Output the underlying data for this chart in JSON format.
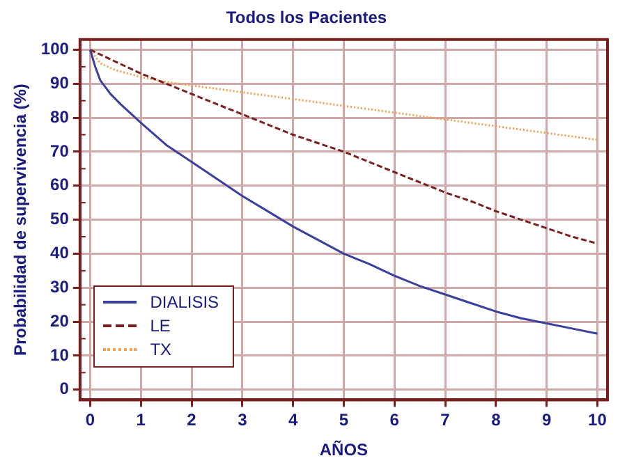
{
  "chart_data": {
    "type": "line",
    "title": "Todos los Pacientes",
    "xlabel": "AÑOS",
    "ylabel": "Probabilidad de supervivencia (%)",
    "xlim": [
      -0.2,
      10.2
    ],
    "xticks": [
      0,
      1,
      2,
      3,
      4,
      5,
      6,
      7,
      8,
      9,
      10
    ],
    "ylim": [
      -3,
      103
    ],
    "yticks": [
      0,
      10,
      20,
      30,
      40,
      50,
      60,
      70,
      80,
      90,
      100
    ],
    "grid": true,
    "legend": "bottom left",
    "marker": "none",
    "series": [
      {
        "name": "DIALISIS",
        "color": "#3b3fa0",
        "line_style": "solid",
        "x": [
          0,
          0.1,
          0.2,
          0.4,
          0.6,
          1,
          1.5,
          2,
          2.5,
          3,
          3.5,
          4,
          4.5,
          5,
          5.5,
          6,
          6.5,
          7,
          7.5,
          8,
          8.5,
          9,
          9.5,
          10
        ],
        "values": [
          100,
          95,
          91,
          87,
          84,
          78.5,
          72,
          67,
          62,
          57,
          52.5,
          48,
          44,
          40,
          37,
          33.5,
          30.5,
          28,
          25.5,
          23,
          21,
          19.5,
          18,
          16.5
        ]
      },
      {
        "name": "LE",
        "color": "#7a1f1f",
        "line_style": "dashed",
        "x": [
          0,
          0.5,
          1,
          1.5,
          2,
          2.5,
          3,
          3.5,
          4,
          4.5,
          5,
          5.5,
          6,
          6.5,
          7,
          7.5,
          8,
          8.5,
          9,
          9.5,
          10
        ],
        "values": [
          100,
          96.5,
          93,
          90,
          87,
          84,
          81,
          78,
          75,
          72.5,
          70,
          67,
          64,
          61,
          58,
          55.5,
          52.5,
          50,
          47.5,
          45,
          43
        ]
      },
      {
        "name": "TX",
        "color": "#f0a050",
        "line_style": "dotted",
        "x": [
          0,
          0.2,
          0.5,
          1,
          1.5,
          2,
          3,
          4,
          5,
          6,
          7,
          8,
          9,
          10
        ],
        "values": [
          100,
          96,
          94,
          92,
          90.5,
          89.5,
          87.5,
          85.5,
          83.5,
          81.5,
          79.5,
          77.5,
          75.5,
          73.5
        ]
      }
    ]
  }
}
